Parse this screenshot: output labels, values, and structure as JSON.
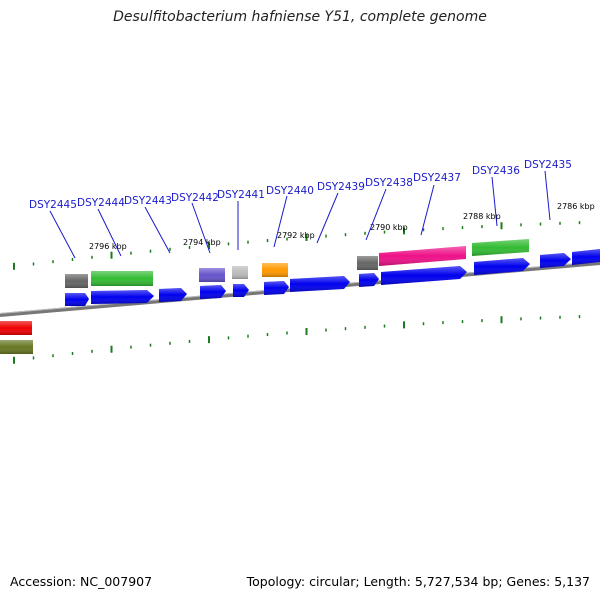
{
  "title": "Desulfitobacterium hafniense Y51, complete genome",
  "footer": {
    "accession": "Accession: NC_007907",
    "topology": "Topology: circular; Length: 5,727,534 bp; Genes: 5,137"
  },
  "kbp_labels": [
    "2796 kbp",
    "2794 kbp",
    "2792 kbp",
    "2790 kbp",
    "2788 kbp",
    "2786 kbp"
  ],
  "gene_labels": [
    "DSY2445",
    "DSY2444",
    "DSY2443",
    "DSY2442",
    "DSY2441",
    "DSY2440",
    "DSY2439",
    "DSY2438",
    "DSY2437",
    "DSY2436",
    "DSY2435"
  ],
  "colors": {
    "gene_label": "#1a1acc",
    "cds": "#0000ee",
    "tick": "#1f7a1f",
    "backbone": "#777777",
    "gray": "#666666",
    "green": "#33bb33",
    "purple": "#6655cc",
    "light_gray": "#bbbbbb",
    "orange": "#ff9900",
    "magenta": "#ee1188",
    "red": "#ee0000",
    "olive": "#667722"
  }
}
